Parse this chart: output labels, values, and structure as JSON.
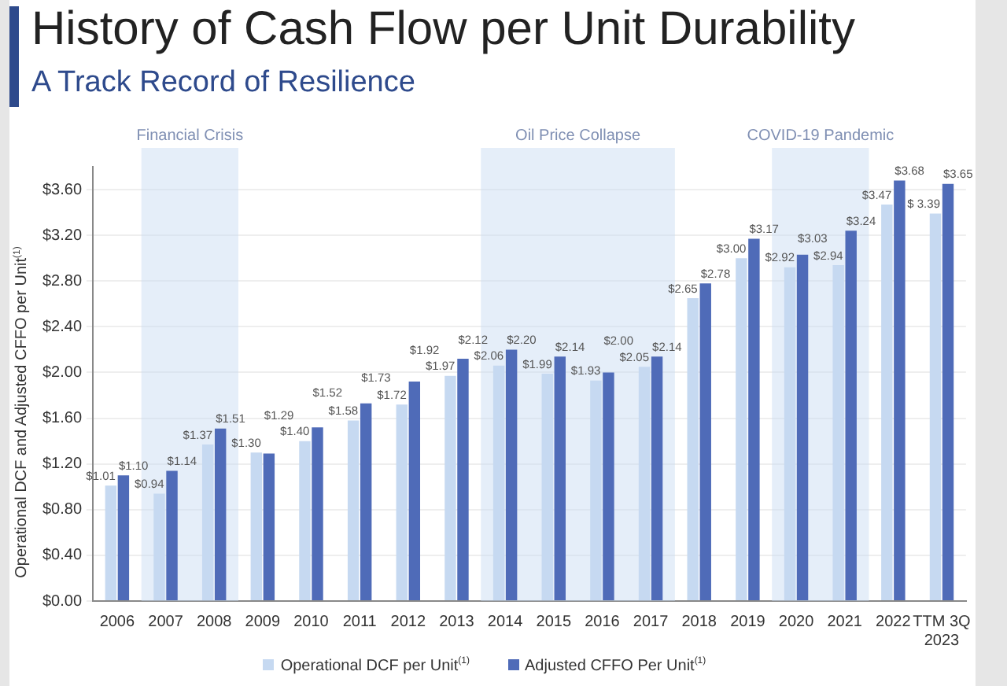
{
  "chart_data": {
    "type": "bar",
    "title": "History of Cash Flow per Unit Durability",
    "subtitle": "A Track Record of Resilience",
    "ylabel": "Operational DCF and Adjusted CFFO per Unit$^{(1)}$",
    "categories": [
      "2006",
      "2007",
      "2008",
      "2009",
      "2010",
      "2011",
      "2012",
      "2013",
      "2014",
      "2015",
      "2016",
      "2017",
      "2018",
      "2019",
      "2020",
      "2021",
      "2022",
      "TTM 3Q\n2023"
    ],
    "series": [
      {
        "name": "Operational DCF per Unit$^{(1)}$",
        "color": "#c6d9f1",
        "values": [
          1.01,
          0.94,
          1.37,
          1.3,
          1.4,
          1.58,
          1.72,
          1.97,
          2.06,
          1.99,
          1.93,
          2.05,
          2.65,
          3.0,
          2.92,
          2.94,
          3.47,
          3.39
        ],
        "value_labels": [
          "$1.01",
          "$0.94",
          "$1.37",
          "$1.30",
          "$1.40",
          "$1.58",
          "$1.72",
          "$1.97",
          "$2.06",
          "$1.99",
          "$1.93",
          "$2.05",
          "$2.65",
          "$3.00",
          "$2.92",
          "$2.94",
          "$3.47",
          "$ 3.39"
        ]
      },
      {
        "name": "Adjusted CFFO Per Unit$^{(1)}$",
        "color": "#4f6bb8",
        "values": [
          1.1,
          1.14,
          1.51,
          1.29,
          1.52,
          1.73,
          1.92,
          2.12,
          2.2,
          2.14,
          2.0,
          2.14,
          2.78,
          3.17,
          3.03,
          3.24,
          3.68,
          3.65
        ],
        "value_labels": [
          "$1.10",
          "$1.14",
          "$1.51",
          "$1.29",
          "$1.52",
          "$1.73",
          "$1.92",
          "$2.12",
          "$2.20",
          "$2.14",
          "$2.00",
          "$2.14",
          "$2.78",
          "$3.17",
          "$3.03",
          "$3.24",
          "$3.68",
          "$3.65"
        ]
      }
    ],
    "ylim": [
      0,
      3.8
    ],
    "yticks": [
      {
        "value": 0,
        "label": "$0.00"
      },
      {
        "value": 0.4,
        "label": "$0.40"
      },
      {
        "value": 0.8,
        "label": "$0.80"
      },
      {
        "value": 1.2,
        "label": "$1.20"
      },
      {
        "value": 1.6,
        "label": "$1.60"
      },
      {
        "value": 2.0,
        "label": "$2.00"
      },
      {
        "value": 2.4,
        "label": "$2.40"
      },
      {
        "value": 2.8,
        "label": "$2.80"
      },
      {
        "value": 3.2,
        "label": "$3.20"
      },
      {
        "value": 3.6,
        "label": "$3.60"
      }
    ],
    "bands": [
      {
        "axis": "x",
        "from": "2007",
        "to": "2008",
        "label": "Financial Crisis",
        "color": "#c6d9f1"
      },
      {
        "axis": "x",
        "from": "2014",
        "to": "2017",
        "label": "Oil Price Collapse",
        "color": "#c6d9f1"
      },
      {
        "axis": "x",
        "from": "2020",
        "to": "2021",
        "label": "COVID-19 Pandemic",
        "color": "#c6d9f1"
      }
    ],
    "grid": "y",
    "legend": "bottom"
  }
}
